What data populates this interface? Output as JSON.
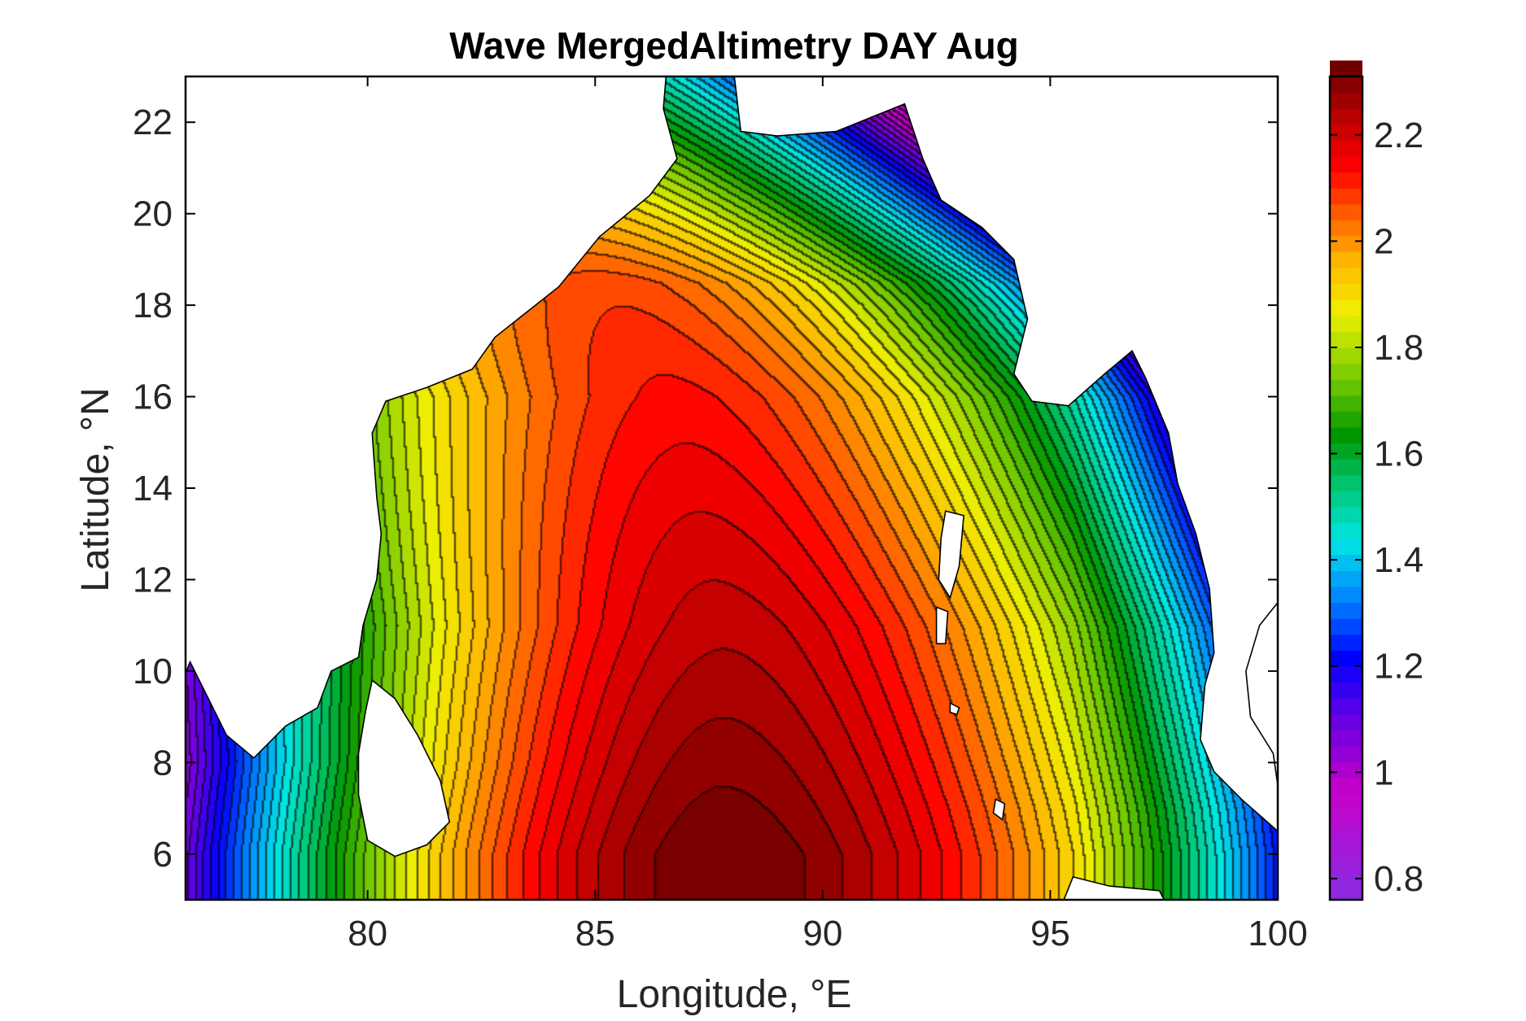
{
  "chart_data": {
    "type": "heatmap",
    "subtype": "filled-contour map",
    "title": "Wave MergedAltimetry DAY Aug",
    "xlabel": "Longitude, °E",
    "ylabel": "Latitude, °N",
    "xlim": [
      76,
      100
    ],
    "ylim": [
      5,
      23
    ],
    "xticks": [
      80,
      85,
      90,
      95,
      100
    ],
    "yticks": [
      6,
      8,
      10,
      12,
      14,
      16,
      18,
      20,
      22
    ],
    "colorbar": {
      "limits": [
        0.76,
        2.31
      ],
      "ticks": [
        0.8,
        1,
        1.2,
        1.4,
        1.6,
        1.8,
        2,
        2.2
      ],
      "colors": [
        {
          "value": 0.76,
          "color": "#8a2be2"
        },
        {
          "value": 0.95,
          "color": "#c800c8"
        },
        {
          "value": 1.1,
          "color": "#5a00e6"
        },
        {
          "value": 1.2,
          "color": "#0000ff"
        },
        {
          "value": 1.3,
          "color": "#0078ff"
        },
        {
          "value": 1.42,
          "color": "#00e6e6"
        },
        {
          "value": 1.52,
          "color": "#00c878"
        },
        {
          "value": 1.62,
          "color": "#009600"
        },
        {
          "value": 1.72,
          "color": "#6ec800"
        },
        {
          "value": 1.85,
          "color": "#f0f000"
        },
        {
          "value": 1.95,
          "color": "#ffb400"
        },
        {
          "value": 2.05,
          "color": "#ff5000"
        },
        {
          "value": 2.12,
          "color": "#ff0000"
        },
        {
          "value": 2.2,
          "color": "#c80000"
        },
        {
          "value": 2.31,
          "color": "#6e0000"
        }
      ]
    },
    "contour_interval": 0.03,
    "field_core": {
      "lon": 87.8,
      "lat": 6,
      "max_value": 2.31
    },
    "coastline": "black",
    "land_color": "#ffffff",
    "grid": false
  }
}
